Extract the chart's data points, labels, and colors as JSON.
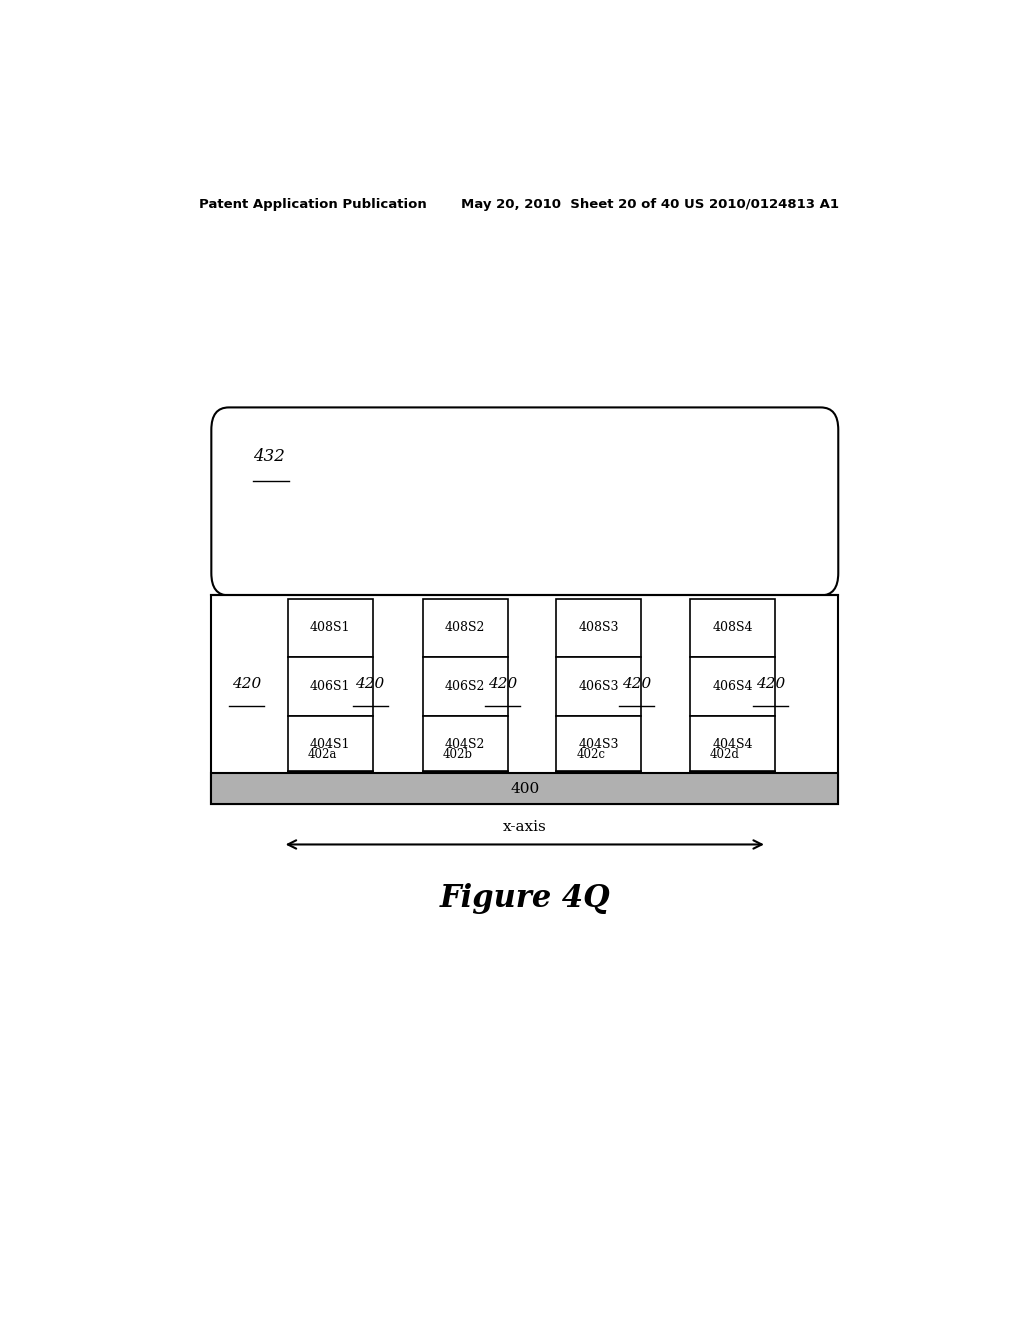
{
  "bg_color": "#ffffff",
  "header_left": "Patent Application Publication",
  "header_mid": "May 20, 2010  Sheet 20 of 40",
  "header_right": "US 2010/0124813 A1",
  "figure_label": "Figure 4Q",
  "x_axis_label": "x-axis",
  "label_432": "432",
  "label_400": "400",
  "columns": [
    {
      "labels": [
        "408S1",
        "406S1",
        "404S1"
      ],
      "hatch_label": "402a"
    },
    {
      "labels": [
        "408S2",
        "406S2",
        "404S2"
      ],
      "hatch_label": "402b"
    },
    {
      "labels": [
        "408S3",
        "406S3",
        "404S3"
      ],
      "hatch_label": "402c"
    },
    {
      "labels": [
        "408S4",
        "406S4",
        "404S4"
      ],
      "hatch_label": "402d"
    }
  ]
}
